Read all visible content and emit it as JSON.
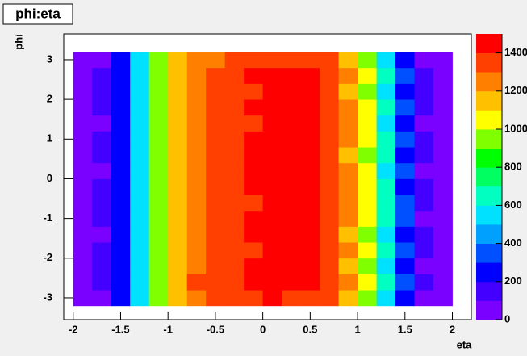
{
  "chart_data": {
    "type": "heatmap",
    "title": "phi:eta",
    "xlabel": "eta",
    "ylabel": "phi",
    "xbins": [
      -2.0,
      -1.8,
      -1.6,
      -1.4,
      -1.2,
      -1.0,
      -0.8,
      -0.6,
      -0.4,
      -0.2,
      0.0,
      0.2,
      0.4,
      0.6,
      0.8,
      1.0,
      1.2,
      1.4,
      1.6,
      1.8,
      2.0
    ],
    "ybins": [
      -3.2,
      -2.8,
      -2.4,
      -2.0,
      -1.6,
      -1.2,
      -0.8,
      -0.4,
      0.0,
      0.4,
      0.8,
      1.2,
      1.6,
      2.0,
      2.4,
      2.8,
      3.2
    ],
    "z": [
      [
        70,
        90,
        230,
        520,
        930,
        1130,
        1260,
        1300,
        1350,
        1380,
        1400,
        1390,
        1380,
        1320,
        1180,
        980,
        580,
        280,
        90,
        50
      ],
      [
        85,
        105,
        260,
        560,
        960,
        1160,
        1300,
        1340,
        1390,
        1420,
        1430,
        1420,
        1400,
        1360,
        1210,
        1010,
        610,
        310,
        105,
        65
      ],
      [
        80,
        100,
        245,
        545,
        940,
        1150,
        1270,
        1320,
        1370,
        1400,
        1410,
        1430,
        1420,
        1340,
        1190,
        990,
        590,
        295,
        95,
        60
      ],
      [
        90,
        110,
        255,
        555,
        955,
        1140,
        1290,
        1330,
        1380,
        1390,
        1440,
        1410,
        1400,
        1350,
        1200,
        1000,
        600,
        300,
        100,
        55
      ],
      [
        75,
        95,
        240,
        540,
        945,
        1145,
        1275,
        1310,
        1360,
        1410,
        1420,
        1400,
        1410,
        1360,
        1195,
        995,
        595,
        290,
        100,
        60
      ],
      [
        85,
        100,
        250,
        550,
        950,
        1155,
        1280,
        1335,
        1385,
        1400,
        1425,
        1420,
        1405,
        1345,
        1205,
        1005,
        605,
        305,
        95,
        65
      ],
      [
        80,
        105,
        260,
        560,
        960,
        1150,
        1285,
        1330,
        1375,
        1395,
        1415,
        1430,
        1415,
        1355,
        1200,
        1000,
        600,
        300,
        105,
        60
      ],
      [
        90,
        100,
        250,
        555,
        955,
        1160,
        1280,
        1340,
        1390,
        1405,
        1420,
        1410,
        1420,
        1350,
        1210,
        1010,
        600,
        295,
        100,
        55
      ],
      [
        85,
        95,
        245,
        550,
        950,
        1150,
        1275,
        1325,
        1380,
        1410,
        1430,
        1420,
        1410,
        1350,
        1200,
        1000,
        595,
        300,
        95,
        60
      ],
      [
        80,
        105,
        255,
        545,
        945,
        1145,
        1280,
        1330,
        1370,
        1400,
        1415,
        1425,
        1400,
        1345,
        1195,
        995,
        600,
        290,
        100,
        65
      ],
      [
        90,
        100,
        250,
        560,
        960,
        1155,
        1290,
        1335,
        1385,
        1405,
        1420,
        1410,
        1415,
        1355,
        1205,
        1005,
        605,
        300,
        105,
        55
      ],
      [
        75,
        95,
        240,
        550,
        950,
        1150,
        1270,
        1320,
        1375,
        1395,
        1425,
        1430,
        1405,
        1340,
        1200,
        1000,
        590,
        295,
        95,
        60
      ],
      [
        85,
        105,
        260,
        555,
        955,
        1160,
        1285,
        1330,
        1380,
        1410,
        1420,
        1415,
        1400,
        1350,
        1210,
        1005,
        600,
        305,
        100,
        60
      ],
      [
        80,
        100,
        250,
        545,
        945,
        1140,
        1275,
        1315,
        1365,
        1390,
        1410,
        1420,
        1410,
        1345,
        1190,
        995,
        595,
        290,
        100,
        55
      ],
      [
        90,
        110,
        255,
        560,
        960,
        1155,
        1290,
        1340,
        1390,
        1415,
        1430,
        1425,
        1410,
        1360,
        1205,
        1010,
        605,
        300,
        105,
        65
      ],
      [
        65,
        85,
        225,
        510,
        920,
        1120,
        1250,
        1290,
        1340,
        1370,
        1390,
        1380,
        1370,
        1310,
        1170,
        970,
        570,
        270,
        85,
        45
      ]
    ],
    "xlim": [
      -2.1,
      2.2
    ],
    "ylim": [
      -3.55,
      3.65
    ],
    "zlim": [
      0,
      1500
    ],
    "xticks": [
      -2,
      -1.5,
      -1,
      -0.5,
      0,
      0.5,
      1,
      1.5,
      2
    ],
    "yticks": [
      -3,
      -2,
      -1,
      0,
      1,
      2,
      3
    ],
    "zticks": [
      0,
      200,
      400,
      600,
      800,
      1000,
      1200,
      1400
    ],
    "palette": [
      "#7a00ff",
      "#4400ff",
      "#0000ff",
      "#0050ff",
      "#00a0ff",
      "#00e0ff",
      "#00ffc0",
      "#00ff60",
      "#00ff00",
      "#80ff00",
      "#ffff00",
      "#ffc000",
      "#ff8000",
      "#ff4000",
      "#ff0000"
    ]
  }
}
